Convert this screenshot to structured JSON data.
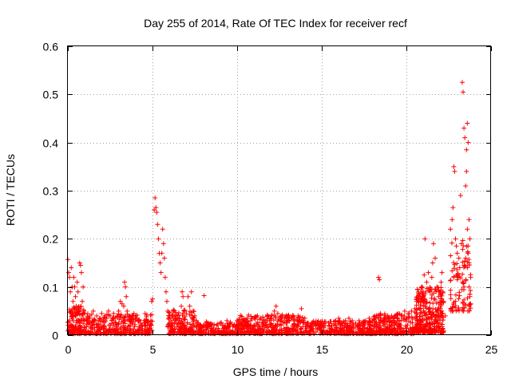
{
  "chart_data": {
    "type": "scatter",
    "title": "Day 255 of 2014, Rate Of TEC Index for receiver recf",
    "xlabel": "GPS time / hours",
    "ylabel": "ROTI / TECUs",
    "xlim": [
      0,
      25
    ],
    "ylim": [
      0,
      0.6
    ],
    "xticks": [
      0,
      5,
      10,
      15,
      20,
      25
    ],
    "xtick_labels": [
      "0",
      "5",
      "10",
      "15",
      "20",
      "25"
    ],
    "yticks": [
      0,
      0.1,
      0.2,
      0.3,
      0.4,
      0.5,
      0.6
    ],
    "ytick_labels": [
      "0",
      "0.1",
      "0.2",
      "0.3",
      "0.4",
      "0.5",
      "0.6"
    ],
    "grid": true,
    "marker": "plus",
    "color": "#ff0000",
    "series": [
      {
        "name": "ROTI",
        "points": [
          [
            0.0,
            0.157
          ],
          [
            0.05,
            0.13
          ],
          [
            0.1,
            0.12
          ],
          [
            0.15,
            0.09
          ],
          [
            0.2,
            0.14
          ],
          [
            0.25,
            0.1
          ],
          [
            0.3,
            0.07
          ],
          [
            0.35,
            0.12
          ],
          [
            0.4,
            0.1
          ],
          [
            0.45,
            0.08
          ],
          [
            0.5,
            0.06
          ],
          [
            0.55,
            0.11
          ],
          [
            0.6,
            0.09
          ],
          [
            0.7,
            0.15
          ],
          [
            0.75,
            0.145
          ],
          [
            0.8,
            0.13
          ],
          [
            0.85,
            0.07
          ],
          [
            0.9,
            0.1
          ],
          [
            0.95,
            0.05
          ],
          [
            0.1,
            0.03
          ],
          [
            0.2,
            0.02
          ],
          [
            0.3,
            0.04
          ],
          [
            0.5,
            0.03
          ],
          [
            0.7,
            0.02
          ],
          [
            0.9,
            0.03
          ],
          [
            1.0,
            0.045
          ],
          [
            1.1,
            0.03
          ],
          [
            1.2,
            0.035
          ],
          [
            1.3,
            0.04
          ],
          [
            1.4,
            0.025
          ],
          [
            1.5,
            0.05
          ],
          [
            1.6,
            0.03
          ],
          [
            1.7,
            0.04
          ],
          [
            1.8,
            0.03
          ],
          [
            1.9,
            0.035
          ],
          [
            2.0,
            0.045
          ],
          [
            2.1,
            0.03
          ],
          [
            2.2,
            0.04
          ],
          [
            2.3,
            0.035
          ],
          [
            2.4,
            0.05
          ],
          [
            2.5,
            0.04
          ],
          [
            2.6,
            0.03
          ],
          [
            2.7,
            0.045
          ],
          [
            2.8,
            0.035
          ],
          [
            2.9,
            0.04
          ],
          [
            3.0,
            0.05
          ],
          [
            3.1,
            0.07
          ],
          [
            3.2,
            0.065
          ],
          [
            3.3,
            0.06
          ],
          [
            3.35,
            0.11
          ],
          [
            3.4,
            0.1
          ],
          [
            3.45,
            0.08
          ],
          [
            3.5,
            0.05
          ],
          [
            3.6,
            0.04
          ],
          [
            3.7,
            0.03
          ],
          [
            3.8,
            0.035
          ],
          [
            3.9,
            0.045
          ],
          [
            4.0,
            0.04
          ],
          [
            4.1,
            0.035
          ],
          [
            4.2,
            0.03
          ],
          [
            4.3,
            0.025
          ],
          [
            4.4,
            0.02
          ],
          [
            4.5,
            0.03
          ],
          [
            4.6,
            0.025
          ],
          [
            4.7,
            0.02
          ],
          [
            4.8,
            0.015
          ],
          [
            4.9,
            0.03
          ],
          [
            4.95,
            0.07
          ],
          [
            5.0,
            0.075
          ],
          [
            5.1,
            0.26
          ],
          [
            5.15,
            0.285
          ],
          [
            5.2,
            0.265
          ],
          [
            5.25,
            0.255
          ],
          [
            5.3,
            0.23
          ],
          [
            5.35,
            0.2
          ],
          [
            5.4,
            0.17
          ],
          [
            5.45,
            0.15
          ],
          [
            5.5,
            0.13
          ],
          [
            5.55,
            0.17
          ],
          [
            5.6,
            0.22
          ],
          [
            5.65,
            0.19
          ],
          [
            5.7,
            0.16
          ],
          [
            5.75,
            0.12
          ],
          [
            5.8,
            0.09
          ],
          [
            5.85,
            0.07
          ],
          [
            5.9,
            0.05
          ],
          [
            6.0,
            0.04
          ],
          [
            6.1,
            0.03
          ],
          [
            6.2,
            0.035
          ],
          [
            6.3,
            0.025
          ],
          [
            6.4,
            0.03
          ],
          [
            6.5,
            0.04
          ],
          [
            6.6,
            0.035
          ],
          [
            6.7,
            0.06
          ],
          [
            6.75,
            0.09
          ],
          [
            6.8,
            0.08
          ],
          [
            6.9,
            0.05
          ],
          [
            7.0,
            0.045
          ],
          [
            7.1,
            0.08
          ],
          [
            7.2,
            0.06
          ],
          [
            7.3,
            0.09
          ],
          [
            7.4,
            0.05
          ],
          [
            7.5,
            0.04
          ],
          [
            7.6,
            0.03
          ],
          [
            7.7,
            0.025
          ],
          [
            7.8,
            0.02
          ],
          [
            7.9,
            0.015
          ],
          [
            8.0,
            0.02
          ],
          [
            8.05,
            0.082
          ],
          [
            8.2,
            0.015
          ],
          [
            8.4,
            0.02
          ],
          [
            8.6,
            0.015
          ],
          [
            8.8,
            0.02
          ],
          [
            9.0,
            0.025
          ],
          [
            9.2,
            0.02
          ],
          [
            9.4,
            0.03
          ],
          [
            9.6,
            0.025
          ],
          [
            9.8,
            0.02
          ],
          [
            10.0,
            0.03
          ],
          [
            10.2,
            0.025
          ],
          [
            10.4,
            0.03
          ],
          [
            10.6,
            0.035
          ],
          [
            10.8,
            0.03
          ],
          [
            11.0,
            0.035
          ],
          [
            11.2,
            0.04
          ],
          [
            11.4,
            0.035
          ],
          [
            11.6,
            0.03
          ],
          [
            11.8,
            0.04
          ],
          [
            12.0,
            0.035
          ],
          [
            12.2,
            0.05
          ],
          [
            12.3,
            0.06
          ],
          [
            12.4,
            0.045
          ],
          [
            12.6,
            0.04
          ],
          [
            12.8,
            0.035
          ],
          [
            13.0,
            0.04
          ],
          [
            13.2,
            0.035
          ],
          [
            13.4,
            0.03
          ],
          [
            13.6,
            0.04
          ],
          [
            13.8,
            0.055
          ],
          [
            14.0,
            0.035
          ],
          [
            14.2,
            0.025
          ],
          [
            14.4,
            0.02
          ],
          [
            14.6,
            0.025
          ],
          [
            14.8,
            0.02
          ],
          [
            15.0,
            0.025
          ],
          [
            15.2,
            0.02
          ],
          [
            15.4,
            0.025
          ],
          [
            15.6,
            0.02
          ],
          [
            15.8,
            0.03
          ],
          [
            16.0,
            0.035
          ],
          [
            16.2,
            0.025
          ],
          [
            16.4,
            0.03
          ],
          [
            16.6,
            0.035
          ],
          [
            16.8,
            0.03
          ],
          [
            17.0,
            0.025
          ],
          [
            17.2,
            0.03
          ],
          [
            17.4,
            0.025
          ],
          [
            17.6,
            0.03
          ],
          [
            17.8,
            0.035
          ],
          [
            18.0,
            0.03
          ],
          [
            18.2,
            0.035
          ],
          [
            18.35,
            0.12
          ],
          [
            18.4,
            0.115
          ],
          [
            18.5,
            0.03
          ],
          [
            18.7,
            0.035
          ],
          [
            18.9,
            0.04
          ],
          [
            19.1,
            0.035
          ],
          [
            19.3,
            0.04
          ],
          [
            19.5,
            0.045
          ],
          [
            19.7,
            0.04
          ],
          [
            19.9,
            0.05
          ],
          [
            20.1,
            0.045
          ],
          [
            20.3,
            0.05
          ],
          [
            20.5,
            0.055
          ],
          [
            20.6,
            0.07
          ],
          [
            20.8,
            0.08
          ],
          [
            20.9,
            0.1
          ],
          [
            21.0,
            0.09
          ],
          [
            21.05,
            0.125
          ],
          [
            21.1,
            0.2
          ],
          [
            21.2,
            0.11
          ],
          [
            21.3,
            0.13
          ],
          [
            21.4,
            0.09
          ],
          [
            21.5,
            0.12
          ],
          [
            21.55,
            0.15
          ],
          [
            21.6,
            0.19
          ],
          [
            21.7,
            0.16
          ],
          [
            21.8,
            0.1
          ],
          [
            21.9,
            0.08
          ],
          [
            22.0,
            0.05
          ],
          [
            22.05,
            0.11
          ],
          [
            22.1,
            0.13
          ],
          [
            22.15,
            0.09
          ],
          [
            22.2,
            0.07
          ],
          [
            22.3,
            0.04
          ],
          [
            22.6,
            0.22
          ],
          [
            22.7,
            0.24
          ],
          [
            22.75,
            0.265
          ],
          [
            22.8,
            0.35
          ],
          [
            22.85,
            0.34
          ],
          [
            22.9,
            0.2
          ],
          [
            22.95,
            0.185
          ],
          [
            23.0,
            0.17
          ],
          [
            23.05,
            0.12
          ],
          [
            23.1,
            0.16
          ],
          [
            23.15,
            0.14
          ],
          [
            23.2,
            0.29
          ],
          [
            23.25,
            0.19
          ],
          [
            23.3,
            0.525
          ],
          [
            23.35,
            0.505
          ],
          [
            23.4,
            0.43
          ],
          [
            23.45,
            0.41
          ],
          [
            23.5,
            0.31
          ],
          [
            23.55,
            0.385
          ],
          [
            23.6,
            0.44
          ],
          [
            23.65,
            0.4
          ],
          [
            23.7,
            0.24
          ],
          [
            23.75,
            0.2
          ],
          [
            23.8,
            0.12
          ],
          [
            23.5,
            0.16
          ],
          [
            23.6,
            0.14
          ],
          [
            23.7,
            0.1
          ],
          [
            23.75,
            0.085
          ],
          [
            23.8,
            0.065
          ],
          [
            23.55,
            0.34
          ],
          [
            23.6,
            0.22
          ],
          [
            23.65,
            0.17
          ],
          [
            23.7,
            0.15
          ],
          [
            23.75,
            0.08
          ],
          [
            23.4,
            0.1
          ]
        ]
      }
    ],
    "dense_bands": [
      {
        "x": [
          0.0,
          1.0
        ],
        "y": [
          0.003,
          0.06
        ],
        "count": 140
      },
      {
        "x": [
          1.0,
          5.0
        ],
        "y": [
          0.003,
          0.045
        ],
        "count": 320
      },
      {
        "x": [
          5.9,
          7.5
        ],
        "y": [
          0.003,
          0.055
        ],
        "count": 160
      },
      {
        "x": [
          7.5,
          10.0
        ],
        "y": [
          0.003,
          0.028
        ],
        "count": 170
      },
      {
        "x": [
          10.0,
          14.0
        ],
        "y": [
          0.003,
          0.042
        ],
        "count": 320
      },
      {
        "x": [
          14.0,
          18.0
        ],
        "y": [
          0.003,
          0.03
        ],
        "count": 290
      },
      {
        "x": [
          18.0,
          20.5
        ],
        "y": [
          0.003,
          0.045
        ],
        "count": 220
      },
      {
        "x": [
          20.5,
          22.2
        ],
        "y": [
          0.005,
          0.1
        ],
        "count": 320
      },
      {
        "x": [
          22.6,
          23.8
        ],
        "y": [
          0.05,
          0.2
        ],
        "count": 90
      }
    ]
  }
}
